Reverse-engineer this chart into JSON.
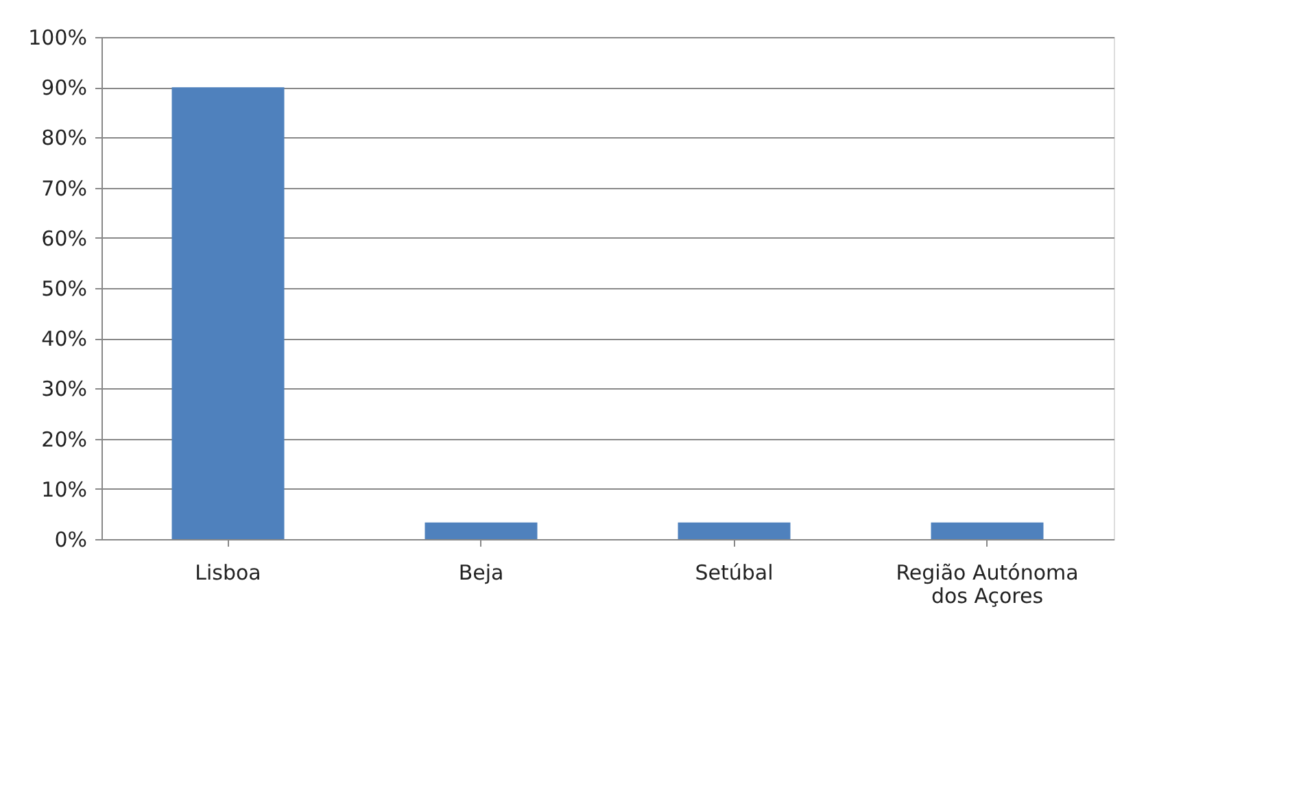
{
  "chart_data": {
    "type": "bar",
    "categories": [
      "Lisboa",
      "Beja",
      "Setúbal",
      "Região Autónoma dos Açores"
    ],
    "values": [
      90,
      3.3,
      3.3,
      3.3
    ],
    "color": "#4f81bd",
    "ylim": [
      0,
      100
    ],
    "yticks": [
      {
        "value": 0,
        "label": "0%"
      },
      {
        "value": 10,
        "label": "10%"
      },
      {
        "value": 20,
        "label": "20%"
      },
      {
        "value": 30,
        "label": "30%"
      },
      {
        "value": 40,
        "label": "40%"
      },
      {
        "value": 50,
        "label": "50%"
      },
      {
        "value": 60,
        "label": "60%"
      },
      {
        "value": 70,
        "label": "70%"
      },
      {
        "value": 80,
        "label": "80%"
      },
      {
        "value": 90,
        "label": "90%"
      },
      {
        "value": 100,
        "label": "100%"
      }
    ],
    "grid": "y"
  }
}
